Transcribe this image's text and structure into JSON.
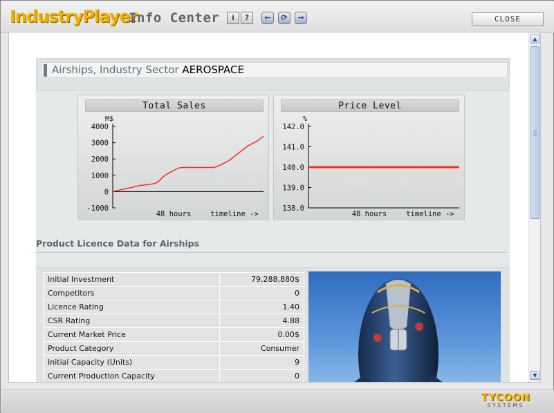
{
  "app": {
    "logo": "IndustryPlayer",
    "title": "Info Center",
    "close_label": "CLOSE",
    "footer_logo": "TYCOON",
    "footer_sub": "SYSTEMS"
  },
  "toolbar": {
    "buttons": [
      {
        "name": "info",
        "glyph": "i"
      },
      {
        "name": "help",
        "glyph": "?"
      },
      {
        "name": "back",
        "glyph": "←"
      },
      {
        "name": "refresh",
        "glyph": "⟳"
      },
      {
        "name": "forward",
        "glyph": "→"
      }
    ]
  },
  "header": {
    "prefix": "Airships, Industry Sector ",
    "sector": "AEROSPACE"
  },
  "chart_data": [
    {
      "type": "line",
      "title": "Total Sales",
      "ylabel": "M$",
      "xlabel": "48 hours",
      "xlabel_right": "timeline ->",
      "ylim": [
        -1000,
        4000
      ],
      "yticks": [
        4000,
        3000,
        2000,
        1000,
        0,
        -1000
      ],
      "ytick_labels": [
        "4000",
        "3000",
        "2000",
        "1000",
        "0",
        "-1000"
      ],
      "x": [
        0,
        1,
        2,
        3,
        4,
        5,
        6,
        7,
        8,
        9,
        10,
        11,
        12,
        13,
        14,
        15,
        16,
        17,
        18,
        19,
        20,
        21,
        22,
        23,
        24,
        25,
        26,
        27,
        28,
        29,
        30,
        31,
        32,
        33,
        34,
        35,
        36,
        37,
        38,
        39,
        40,
        41,
        42,
        43,
        44,
        45,
        46,
        47,
        48
      ],
      "values": [
        0,
        50,
        90,
        130,
        170,
        210,
        250,
        300,
        340,
        380,
        400,
        420,
        450,
        480,
        550,
        700,
        900,
        1050,
        1150,
        1250,
        1350,
        1450,
        1480,
        1480,
        1480,
        1480,
        1480,
        1480,
        1480,
        1480,
        1480,
        1480,
        1480,
        1520,
        1600,
        1700,
        1800,
        1900,
        2050,
        2200,
        2350,
        2500,
        2650,
        2800,
        2900,
        3000,
        3100,
        3250,
        3400
      ],
      "color": "#ff2a1a"
    },
    {
      "type": "line",
      "title": "Price Level",
      "ylabel": "%",
      "xlabel": "48 hours",
      "xlabel_right": "timeline ->",
      "ylim": [
        138.0,
        142.0
      ],
      "yticks": [
        142.0,
        141.0,
        140.0,
        139.0,
        138.0
      ],
      "ytick_labels": [
        "142.0",
        "141.0",
        "140.0",
        "139.0",
        "138.0"
      ],
      "x": [
        0,
        48
      ],
      "values": [
        140.0,
        140.0
      ],
      "color": "#ff2a1a"
    }
  ],
  "licence": {
    "heading": "Product Licence Data for Airships",
    "rows": [
      {
        "label": "Initial Investment",
        "value": "79,288,880$"
      },
      {
        "label": "Competitors",
        "value": "0"
      },
      {
        "label": "Licence Rating",
        "value": "1.40"
      },
      {
        "label": "CSR Rating",
        "value": "4.88"
      },
      {
        "label": "Current Market Price",
        "value": "0.00$"
      },
      {
        "label": "Product Category",
        "value": "Consumer"
      },
      {
        "label": "Initial Capacity (Units)",
        "value": "9"
      },
      {
        "label": "Current Production Capacity",
        "value": "0"
      }
    ]
  },
  "colors": {
    "logo": "#f0b000",
    "accent_red": "#ff2a1a",
    "sky": "#3f7cc9"
  }
}
